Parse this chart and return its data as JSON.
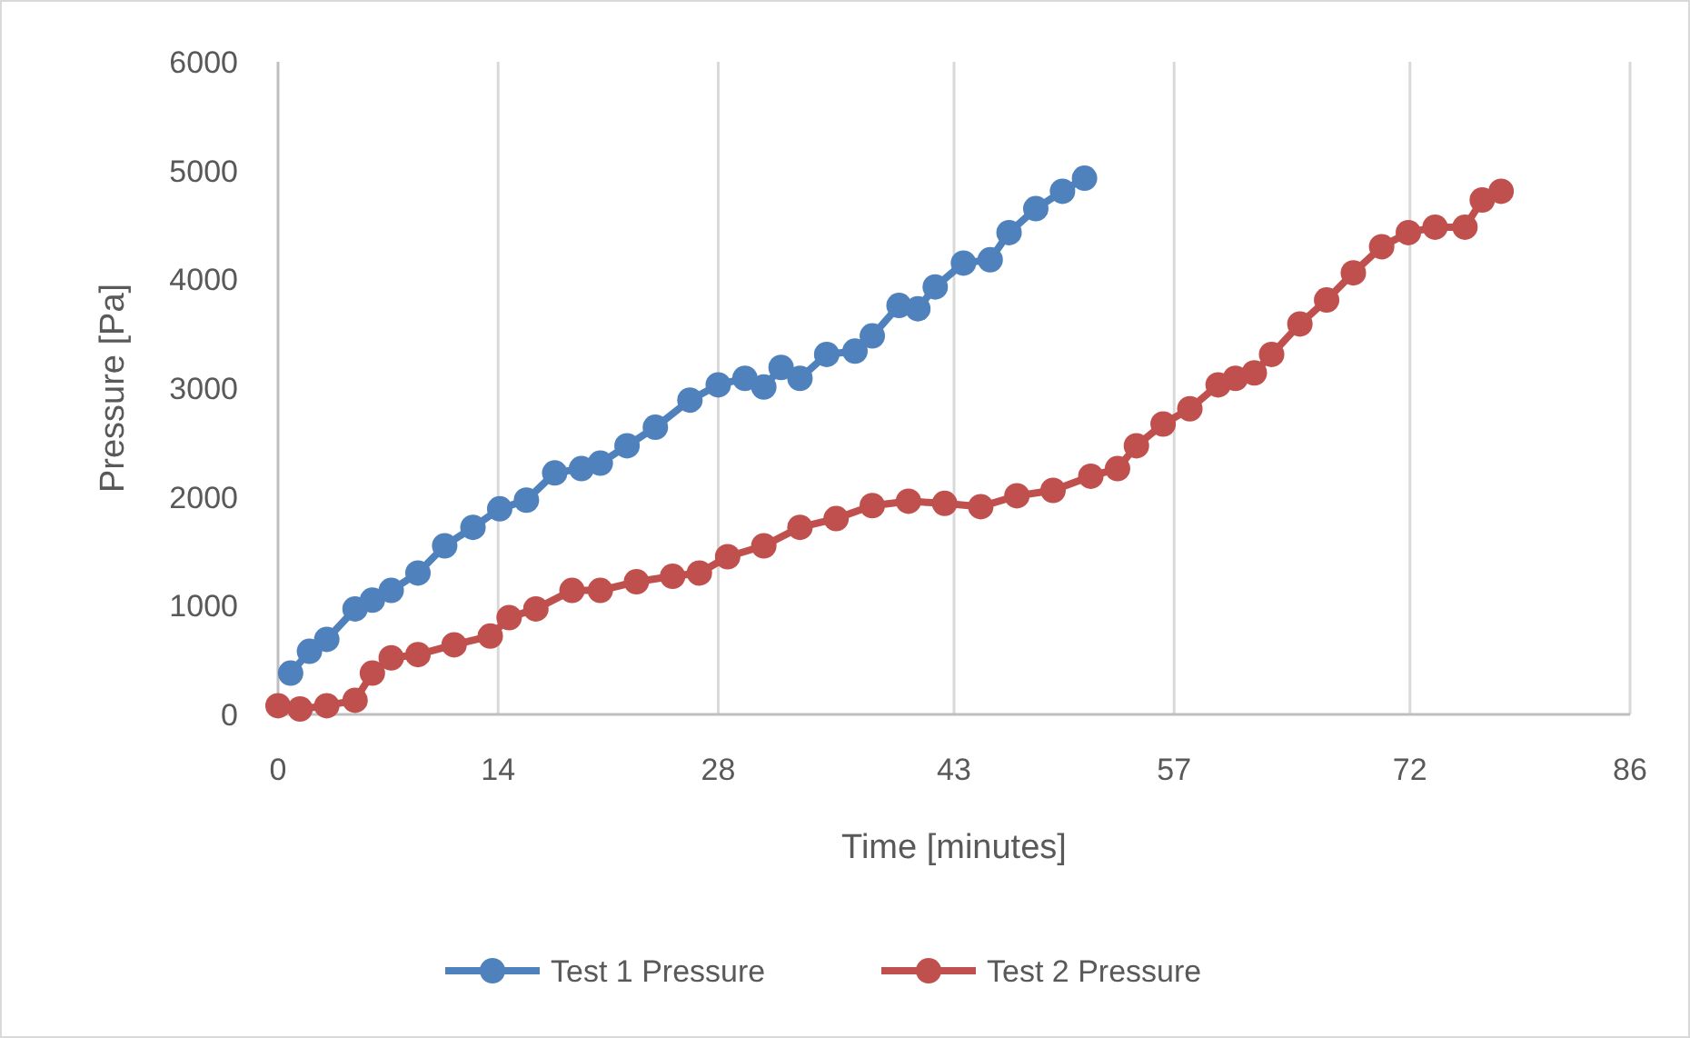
{
  "chart_data": {
    "type": "line",
    "xlabel": "Time [minutes]",
    "ylabel": "Pressure [Pa]",
    "xlim": [
      0,
      86
    ],
    "xticks": [
      0,
      14,
      28,
      43,
      57,
      72,
      86
    ],
    "ylim": [
      0,
      6000
    ],
    "yticks": [
      0,
      1000,
      2000,
      3000,
      4000,
      5000,
      6000
    ],
    "grid": "x",
    "legend": "bottom",
    "marker": "circle",
    "line_style": "solid",
    "series": [
      {
        "name": "Test 1 Pressure",
        "color": "#4f81bd",
        "x": [
          0.8,
          2,
          3.1,
          4.9,
          6,
          7.2,
          8.9,
          10.6,
          12.4,
          14.1,
          15.8,
          17.6,
          19.3,
          20.5,
          22.2,
          24,
          26.2,
          28,
          29.7,
          30.9,
          32,
          33.2,
          34.9,
          36.7,
          37.8,
          39.5,
          40.7,
          41.8,
          43.6,
          45.3,
          46.5,
          48.2,
          49.9,
          51.3
        ],
        "values": [
          380,
          580,
          690,
          970,
          1050,
          1140,
          1300,
          1550,
          1720,
          1890,
          1970,
          2220,
          2260,
          2310,
          2470,
          2640,
          2890,
          3030,
          3090,
          3010,
          3190,
          3090,
          3310,
          3340,
          3480,
          3760,
          3730,
          3930,
          4150,
          4180,
          4430,
          4650,
          4810,
          4930
        ]
      },
      {
        "name": "Test 2 Pressure",
        "color": "#c0504d",
        "x": [
          0,
          1.4,
          3.1,
          4.9,
          6,
          7.2,
          8.9,
          11.2,
          13.5,
          14.7,
          16.4,
          18.7,
          20.5,
          22.8,
          25.1,
          26.8,
          28.6,
          30.9,
          33.2,
          35.5,
          37.8,
          40.1,
          42.4,
          44.7,
          47,
          49.3,
          51.7,
          53.4,
          54.6,
          56.3,
          58,
          59.8,
          60.9,
          62.1,
          63.2,
          65,
          66.7,
          68.4,
          70.2,
          71.9,
          73.6,
          75.5,
          76.6,
          77.8
        ],
        "values": [
          80,
          50,
          80,
          130,
          380,
          520,
          550,
          640,
          720,
          890,
          970,
          1140,
          1140,
          1220,
          1270,
          1300,
          1450,
          1550,
          1720,
          1800,
          1920,
          1960,
          1940,
          1910,
          2010,
          2060,
          2190,
          2260,
          2470,
          2670,
          2810,
          3030,
          3090,
          3140,
          3310,
          3590,
          3810,
          4060,
          4300,
          4430,
          4480,
          4480,
          4730,
          4810
        ]
      }
    ]
  }
}
